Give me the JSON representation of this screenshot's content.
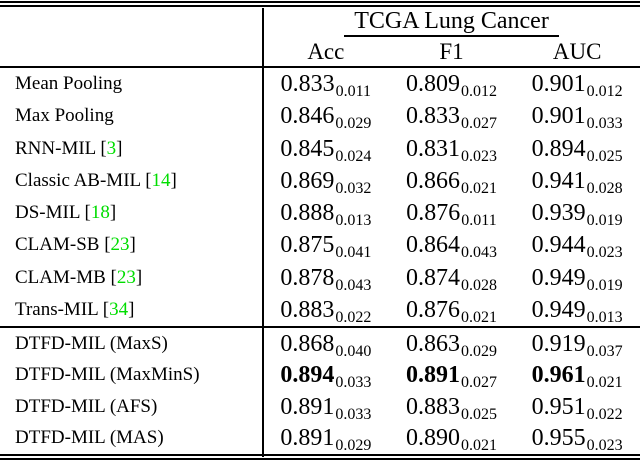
{
  "header": {
    "group_title": "TCGA Lung Cancer",
    "columns": [
      "Acc",
      "F1",
      "AUC"
    ]
  },
  "sections": [
    {
      "name": "baseline-methods",
      "rows": [
        {
          "method": "Mean Pooling",
          "ref": null,
          "bold": false,
          "values": [
            [
              "0.833",
              "0.011"
            ],
            [
              "0.809",
              "0.012"
            ],
            [
              "0.901",
              "0.012"
            ]
          ]
        },
        {
          "method": "Max Pooling",
          "ref": null,
          "bold": false,
          "values": [
            [
              "0.846",
              "0.029"
            ],
            [
              "0.833",
              "0.027"
            ],
            [
              "0.901",
              "0.033"
            ]
          ]
        },
        {
          "method": "RNN-MIL",
          "ref": "3",
          "bold": false,
          "values": [
            [
              "0.845",
              "0.024"
            ],
            [
              "0.831",
              "0.023"
            ],
            [
              "0.894",
              "0.025"
            ]
          ]
        },
        {
          "method": "Classic AB-MIL",
          "ref": "14",
          "bold": false,
          "values": [
            [
              "0.869",
              "0.032"
            ],
            [
              "0.866",
              "0.021"
            ],
            [
              "0.941",
              "0.028"
            ]
          ]
        },
        {
          "method": "DS-MIL",
          "ref": "18",
          "bold": false,
          "values": [
            [
              "0.888",
              "0.013"
            ],
            [
              "0.876",
              "0.011"
            ],
            [
              "0.939",
              "0.019"
            ]
          ]
        },
        {
          "method": "CLAM-SB",
          "ref": "23",
          "bold": false,
          "values": [
            [
              "0.875",
              "0.041"
            ],
            [
              "0.864",
              "0.043"
            ],
            [
              "0.944",
              "0.023"
            ]
          ]
        },
        {
          "method": "CLAM-MB",
          "ref": "23",
          "bold": false,
          "values": [
            [
              "0.878",
              "0.043"
            ],
            [
              "0.874",
              "0.028"
            ],
            [
              "0.949",
              "0.019"
            ]
          ]
        },
        {
          "method": "Trans-MIL",
          "ref": "34",
          "bold": false,
          "values": [
            [
              "0.883",
              "0.022"
            ],
            [
              "0.876",
              "0.021"
            ],
            [
              "0.949",
              "0.013"
            ]
          ]
        }
      ]
    },
    {
      "name": "dtfd-methods",
      "rows": [
        {
          "method": "DTFD-MIL (MaxS)",
          "ref": null,
          "bold": false,
          "values": [
            [
              "0.868",
              "0.040"
            ],
            [
              "0.863",
              "0.029"
            ],
            [
              "0.919",
              "0.037"
            ]
          ]
        },
        {
          "method": "DTFD-MIL (MaxMinS)",
          "ref": null,
          "bold": true,
          "values": [
            [
              "0.894",
              "0.033"
            ],
            [
              "0.891",
              "0.027"
            ],
            [
              "0.961",
              "0.021"
            ]
          ]
        },
        {
          "method": "DTFD-MIL (AFS)",
          "ref": null,
          "bold": false,
          "values": [
            [
              "0.891",
              "0.033"
            ],
            [
              "0.883",
              "0.025"
            ],
            [
              "0.951",
              "0.022"
            ]
          ]
        },
        {
          "method": "DTFD-MIL (MAS)",
          "ref": null,
          "bold": false,
          "values": [
            [
              "0.891",
              "0.029"
            ],
            [
              "0.890",
              "0.021"
            ],
            [
              "0.955",
              "0.023"
            ]
          ]
        }
      ]
    }
  ],
  "colors": {
    "text": "#000000",
    "background": "#ffffff",
    "citation_green": "#00dd00"
  }
}
